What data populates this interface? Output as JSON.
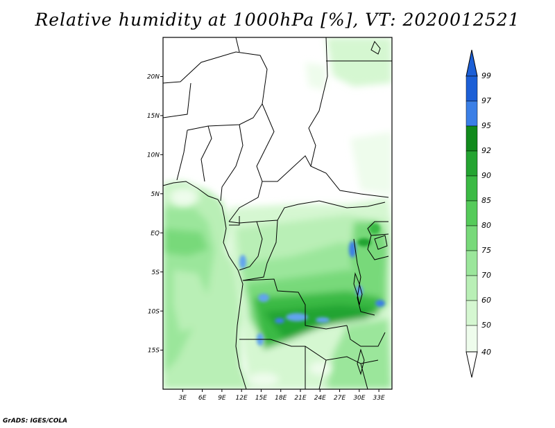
{
  "title": "Relative humidity at 1000hPa [%], VT: 2020012521",
  "credit": "GrADS: IGES/COLA",
  "map": {
    "lon_range": [
      0,
      35
    ],
    "lat_range": [
      -20,
      25
    ],
    "lon_ticks": [
      "3E",
      "6E",
      "9E",
      "12E",
      "15E",
      "18E",
      "21E",
      "24E",
      "27E",
      "30E",
      "33E"
    ],
    "lon_tick_values": [
      3,
      6,
      9,
      12,
      15,
      18,
      21,
      24,
      27,
      30,
      33
    ],
    "lat_ticks": [
      "20N",
      "15N",
      "10N",
      "5N",
      "EQ",
      "5S",
      "10S",
      "15S"
    ],
    "lat_tick_values": [
      20,
      15,
      10,
      5,
      0,
      -5,
      -10,
      -15
    ]
  },
  "colorbar": {
    "labels": [
      "99",
      "97",
      "95",
      "92",
      "90",
      "85",
      "80",
      "75",
      "70",
      "60",
      "50",
      "40"
    ],
    "colors": [
      "#1c5fd6",
      "#3b7fe6",
      "#62a4ef",
      "#118a1c",
      "#24a431",
      "#3bba44",
      "#55cb5a",
      "#78d97a",
      "#9be69b",
      "#b9efb6",
      "#d5f7d1",
      "#eefcec"
    ],
    "over_color": "#1c5fd6",
    "under_color": "#ffffff"
  }
}
